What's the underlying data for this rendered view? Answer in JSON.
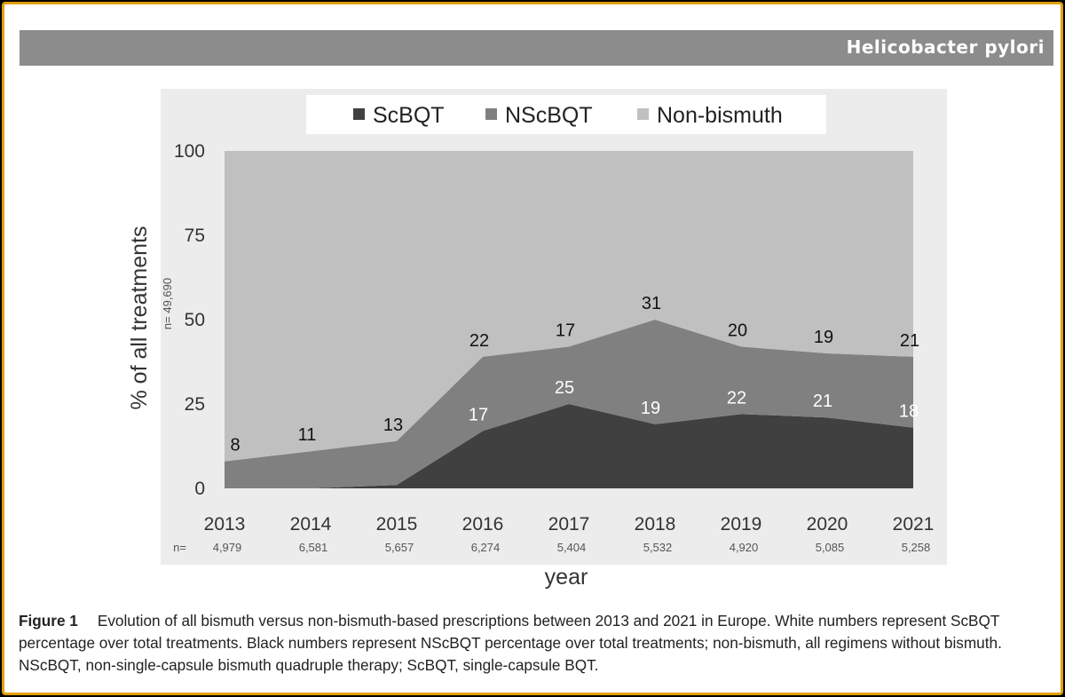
{
  "header": {
    "title": "Helicobacter pylori"
  },
  "caption": {
    "label": "Figure 1",
    "text": "Evolution of all bismuth versus non-bismuth-based prescriptions between 2013 and 2021 in Europe. White numbers represent ScBQT percentage over total treatments. Black numbers represent NScBQT percentage over total treatments; non-bismuth, all regimens without bismuth. NScBQT, non-single-capsule bismuth quadruple therapy; ScBQT, single-capsule BQT."
  },
  "chart_data": {
    "type": "area",
    "stacked": true,
    "x": [
      "2013",
      "2014",
      "2015",
      "2016",
      "2017",
      "2018",
      "2019",
      "2020",
      "2021"
    ],
    "series": [
      {
        "name": "ScBQT",
        "color": "#404040",
        "values": [
          0,
          0,
          1,
          17,
          25,
          19,
          22,
          21,
          18
        ]
      },
      {
        "name": "NScBQT",
        "color": "#808080",
        "values": [
          8,
          11,
          13,
          22,
          17,
          31,
          20,
          19,
          21
        ]
      },
      {
        "name": "Non-bismuth",
        "color": "#c0c0c0",
        "values": [
          92,
          89,
          86,
          61,
          58,
          50,
          58,
          60,
          61
        ]
      }
    ],
    "white_labels": [
      "",
      "",
      "",
      "17",
      "25",
      "19",
      "22",
      "21",
      "18"
    ],
    "black_labels": [
      "8",
      "11",
      "13",
      "22",
      "17",
      "31",
      "20",
      "19",
      "21"
    ],
    "n_prefix": "n=",
    "n_values": [
      "4,979",
      "6,581",
      "5,657",
      "6,274",
      "5,404",
      "5,532",
      "4,920",
      "5,085",
      "5,258"
    ],
    "ylabel": "% of all treatments",
    "ylabel_note": "n= 49,690",
    "xlabel": "year",
    "ylim": [
      0,
      100
    ],
    "yticks": [
      "0",
      "25",
      "50",
      "75",
      "100"
    ],
    "legend_position": "top"
  }
}
